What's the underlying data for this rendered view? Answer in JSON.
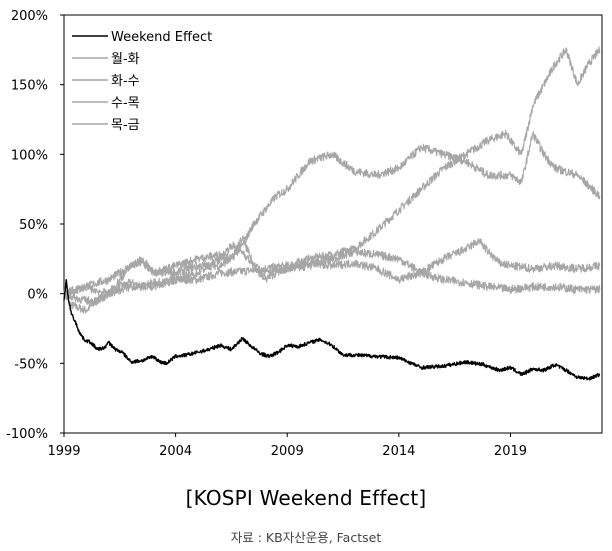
{
  "chart_data": {
    "type": "line",
    "title": "[KOSPI Weekend Effect]",
    "source": "자료 : KB자산운용, Factset",
    "xlabel": "",
    "ylabel": "",
    "xlim": [
      1999,
      2023.1
    ],
    "ylim": [
      -100,
      200
    ],
    "x_ticks": [
      "1999",
      "2004",
      "2009",
      "2014",
      "2019"
    ],
    "x_tick_values": [
      1999,
      2004,
      2009,
      2014,
      2019
    ],
    "y_ticks": [
      "-100%",
      "-50%",
      "0%",
      "50%",
      "100%",
      "150%",
      "200%"
    ],
    "y_tick_values": [
      -100,
      -50,
      0,
      50,
      100,
      150,
      200
    ],
    "grid": false,
    "legend_position": "top-left",
    "series": [
      {
        "name": "Weekend Effect",
        "color": "#000000",
        "x": [
          1999.0,
          1999.1,
          1999.2,
          1999.35,
          1999.5,
          1999.7,
          1999.9,
          2000.2,
          2000.5,
          2000.8,
          2001.0,
          2001.3,
          2001.6,
          2002.0,
          2002.5,
          2003.0,
          2003.3,
          2003.6,
          2004.0,
          2004.5,
          2005.0,
          2005.5,
          2006.0,
          2006.5,
          2007.0,
          2007.4,
          2007.8,
          2008.2,
          2008.6,
          2009.0,
          2009.5,
          2010.0,
          2010.5,
          2011.0,
          2011.5,
          2012.0,
          2013.0,
          2014.0,
          2015.0,
          2016.0,
          2017.0,
          2017.8,
          2018.5,
          2019.0,
          2019.5,
          2020.0,
          2020.5,
          2021.0,
          2021.5,
          2022.0,
          2022.5,
          2023.0
        ],
        "y": [
          -5,
          10,
          -5,
          -15,
          -20,
          -28,
          -33,
          -35,
          -40,
          -39,
          -35,
          -40,
          -42,
          -49,
          -48,
          -45,
          -49,
          -50,
          -45,
          -44,
          -42,
          -40,
          -37,
          -40,
          -32,
          -38,
          -43,
          -45,
          -42,
          -37,
          -38,
          -35,
          -33,
          -37,
          -44,
          -44,
          -45,
          -46,
          -53,
          -52,
          -49,
          -51,
          -55,
          -53,
          -58,
          -54,
          -55,
          -51,
          -55,
          -60,
          -61,
          -58
        ]
      },
      {
        "name": "월-화",
        "color": "#a6a6a6",
        "x": [
          1999.0,
          1999.3,
          1999.6,
          2000.0,
          2000.5,
          2001.0,
          2001.5,
          2002.0,
          2002.5,
          2003.0,
          2003.5,
          2004.0,
          2005.0,
          2006.0,
          2007.0,
          2008.0,
          2009.0,
          2010.0,
          2011.0,
          2012.0,
          2013.0,
          2014.0,
          2015.0,
          2016.0,
          2017.0,
          2018.0,
          2018.8,
          2019.2,
          2019.5,
          2020.0,
          2020.5,
          2021.0,
          2021.5,
          2022.0,
          2022.5,
          2023.0
        ],
        "y": [
          0,
          -8,
          -10,
          -12,
          -5,
          0,
          5,
          8,
          5,
          8,
          8,
          10,
          10,
          15,
          16,
          18,
          20,
          25,
          28,
          32,
          45,
          60,
          75,
          90,
          100,
          110,
          115,
          105,
          100,
          135,
          150,
          165,
          175,
          150,
          165,
          175
        ]
      },
      {
        "name": "화-수",
        "color": "#a6a6a6",
        "x": [
          1999.0,
          1999.5,
          2000.0,
          2000.5,
          2001.0,
          2002.0,
          2002.5,
          2003.0,
          2004.0,
          2005.0,
          2006.0,
          2006.5,
          2007.0,
          2007.5,
          2008.0,
          2008.5,
          2009.0,
          2010.0,
          2011.0,
          2012.0,
          2013.0,
          2014.0,
          2015.0,
          2016.0,
          2017.0,
          2018.0,
          2019.0,
          2019.5,
          2020.0,
          2020.5,
          2021.0,
          2022.0,
          2023.0
        ],
        "y": [
          0,
          2,
          5,
          8,
          10,
          20,
          22,
          15,
          15,
          20,
          20,
          25,
          35,
          50,
          60,
          70,
          75,
          95,
          100,
          88,
          85,
          90,
          105,
          100,
          95,
          85,
          85,
          80,
          115,
          100,
          90,
          85,
          70
        ]
      },
      {
        "name": "수-목",
        "color": "#a6a6a6",
        "x": [
          1999.0,
          1999.5,
          2000.0,
          2000.5,
          2001.0,
          2002.0,
          2002.5,
          2003.0,
          2004.0,
          2005.0,
          2006.0,
          2006.5,
          2007.0,
          2007.5,
          2008.0,
          2008.5,
          2009.0,
          2010.0,
          2011.0,
          2012.0,
          2013.0,
          2014.0,
          2015.0,
          2016.0,
          2017.0,
          2018.0,
          2019.0,
          2020.0,
          2021.0,
          2022.0,
          2023.0
        ],
        "y": [
          0,
          -3,
          -5,
          -5,
          0,
          20,
          25,
          15,
          20,
          25,
          28,
          25,
          40,
          20,
          10,
          15,
          18,
          20,
          25,
          30,
          28,
          25,
          15,
          10,
          8,
          5,
          3,
          5,
          5,
          3,
          3
        ]
      },
      {
        "name": "목-금",
        "color": "#a6a6a6",
        "x": [
          1999.0,
          1999.5,
          2000.0,
          2000.5,
          2001.0,
          2002.0,
          2003.0,
          2004.0,
          2005.0,
          2006.0,
          2006.5,
          2007.0,
          2007.5,
          2008.0,
          2009.0,
          2010.0,
          2011.0,
          2012.0,
          2013.0,
          2014.0,
          2015.0,
          2016.0,
          2017.0,
          2017.6,
          2018.0,
          2018.5,
          2019.0,
          2020.0,
          2021.0,
          2022.0,
          2023.0
        ],
        "y": [
          0,
          3,
          5,
          2,
          0,
          5,
          5,
          10,
          15,
          25,
          35,
          30,
          20,
          15,
          18,
          22,
          20,
          22,
          18,
          10,
          15,
          25,
          32,
          38,
          30,
          22,
          20,
          18,
          20,
          18,
          20
        ]
      }
    ]
  }
}
